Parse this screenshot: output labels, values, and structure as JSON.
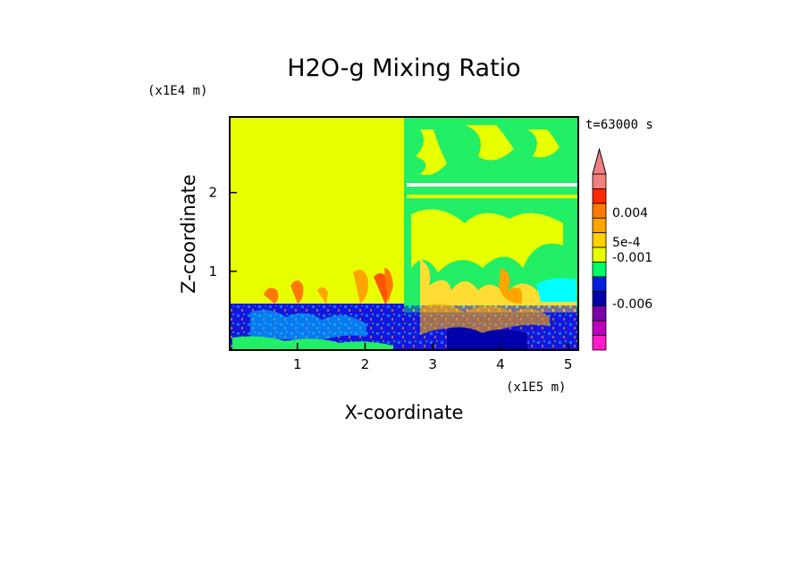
{
  "chart_data": {
    "type": "heatmap",
    "title": "H2O-g Mixing Ratio",
    "xlabel": "X-coordinate",
    "ylabel": "Z-coordinate",
    "x_unit": "(x1E5 m)",
    "y_unit": "(x1E4 m)",
    "time_label": "t=63000 s",
    "xlim": [
      0,
      5.15
    ],
    "ylim": [
      0,
      2.96
    ],
    "xticks": [
      "1",
      "2",
      "3",
      "4",
      "5"
    ],
    "yticks": [
      "1",
      "2"
    ],
    "xtick_values": [
      1,
      2,
      3,
      4,
      5
    ],
    "ytick_values": [
      1,
      2
    ],
    "colorbar": {
      "labels": [
        "0.004",
        "5e-4",
        "-0.001",
        "-0.006"
      ],
      "colors_top_to_bottom": [
        "#f08080",
        "#ff2a00",
        "#ff7a00",
        "#ffa500",
        "#ffd000",
        "#e8ff00",
        "#00ff66",
        "#0022dd",
        "#0000aa",
        "#7a00aa",
        "#bb00bb",
        "#ff1cc8"
      ]
    },
    "regions": {
      "upper_left": "#e8ff00",
      "upper_right": "#22ee66",
      "lower_band": "#1515e0"
    }
  }
}
